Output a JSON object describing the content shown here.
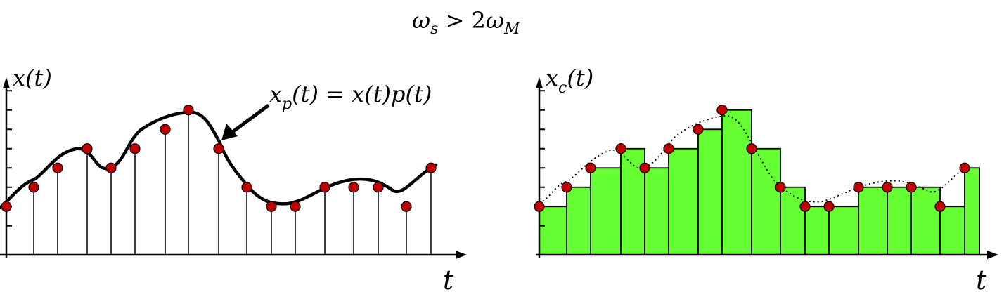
{
  "title": {
    "omega": "ω",
    "sub_s": "s",
    "relation": " > 2",
    "sub_M": "M"
  },
  "left_panel": {
    "ylabel": "x(t)",
    "xlabel": "t",
    "annotation": {
      "x": "x",
      "sub": "p",
      "rest": "(t) = x(t)p(t)"
    },
    "sample_values": [
      2.8,
      3.8,
      4.8,
      5.8,
      4.8,
      5.8,
      6.8,
      7.8,
      5.8,
      3.8,
      2.8,
      2.8,
      3.8,
      3.8,
      3.8,
      2.8,
      4.8
    ],
    "sample_times": [
      0,
      1.13,
      2.13,
      3.33,
      4.33,
      5.33,
      6.53,
      7.63,
      8.93,
      10.13,
      11.23,
      12.23,
      13.33,
      14.43,
      15.53,
      16.63,
      17.63
    ],
    "curve_color": "#000000",
    "marker_color": "#c00000"
  },
  "right_panel": {
    "ylabel_x": "x",
    "ylabel_sub": "c",
    "ylabel_rest": "(t)",
    "xlabel": "t",
    "bar_color": "#66ff33",
    "sample_values": [
      2.8,
      3.8,
      4.8,
      5.8,
      4.8,
      5.8,
      6.8,
      7.8,
      5.8,
      3.8,
      2.8,
      2.8,
      3.8,
      3.8,
      3.8,
      2.8,
      4.8
    ],
    "marker_color": "#c00000"
  }
}
